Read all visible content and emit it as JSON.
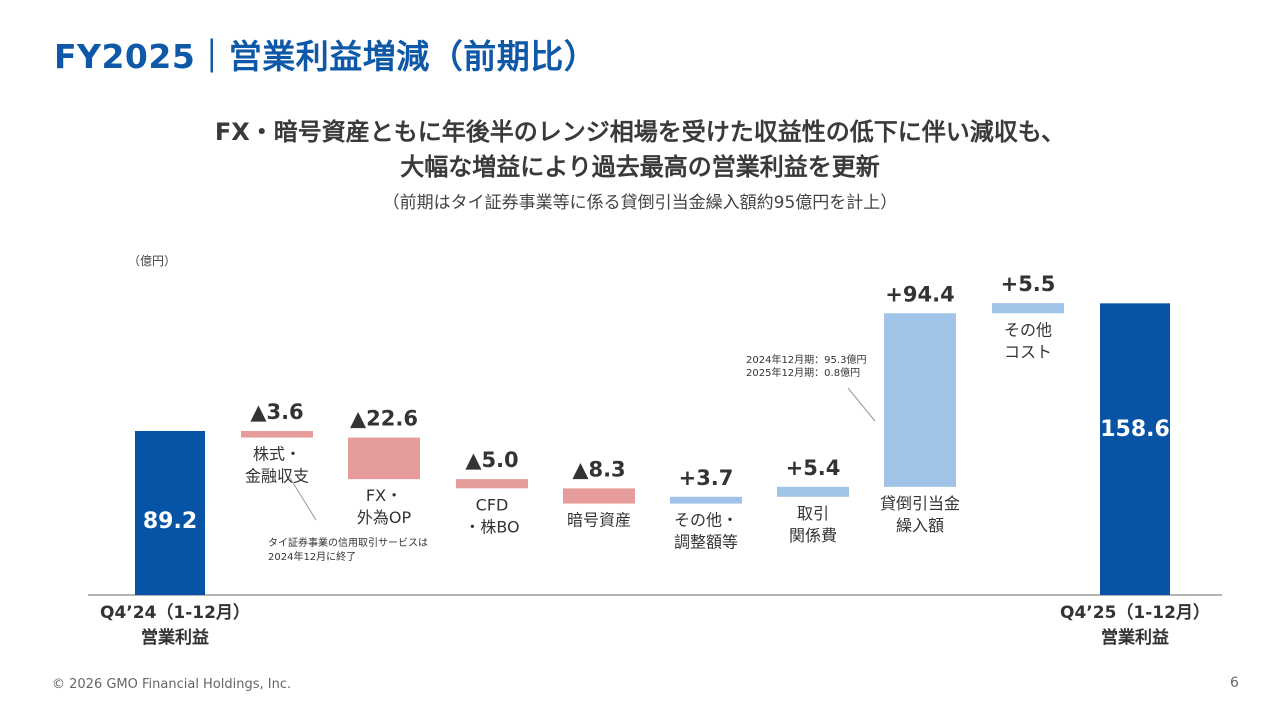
{
  "page": {
    "title": "FY2025｜営業利益増減（前期比）",
    "headline_line1": "FX・暗号資産ともに年後半のレンジ相場を受けた収益性の低下に伴い減収も、",
    "headline_line2": "大幅な増益により過去最高の営業利益を更新",
    "note": "（前期はタイ証券事業等に係る貸倒引当金繰入額約95億円を計上）",
    "unit": "（億円）",
    "copyright": "© 2026 GMO Financial Holdings, Inc.",
    "page_number": "6"
  },
  "colors": {
    "title": "#0e58a8",
    "total_bar": "#0753a5",
    "decrease_bar": "#e79c9c",
    "increase_bar": "#9fc4e7",
    "axis": "#888888"
  },
  "chart_data": {
    "type": "waterfall",
    "unit": "億円",
    "start": {
      "label_line1": "Q4’24（1-12月）",
      "label_line2": "営業利益",
      "value": 89.2,
      "display": "89.2"
    },
    "steps": [
      {
        "display": "▲3.6",
        "delta": -3.6,
        "label": [
          "株式・",
          "金融収支"
        ]
      },
      {
        "display": "▲22.6",
        "delta": -22.6,
        "label": [
          "FX・",
          "外為OP"
        ]
      },
      {
        "display": "▲5.0",
        "delta": -5.0,
        "label": [
          "CFD",
          "・株BO"
        ]
      },
      {
        "display": "▲8.3",
        "delta": -8.3,
        "label": [
          "暗号資産"
        ]
      },
      {
        "display": "+3.7",
        "delta": 3.7,
        "label": [
          "その他・",
          "調整額等"
        ]
      },
      {
        "display": "+5.4",
        "delta": 5.4,
        "label": [
          "取引",
          "関係費"
        ]
      },
      {
        "display": "+94.4",
        "delta": 94.4,
        "label": [
          "貸倒引当金",
          "繰入額"
        ]
      },
      {
        "display": "+5.5",
        "delta": 5.5,
        "label": [
          "その他",
          "コスト"
        ]
      }
    ],
    "end": {
      "label_line1": "Q4’25（1-12月）",
      "label_line2": "営業利益",
      "value": 158.6,
      "display": "158.6"
    },
    "annotations": {
      "thai_note": [
        "タイ証券事業の信用取引サービスは",
        "2024年12月に終了"
      ],
      "provision_note": [
        "2024年12月期：95.3億円",
        "2025年12月期：0.8億円"
      ]
    }
  }
}
